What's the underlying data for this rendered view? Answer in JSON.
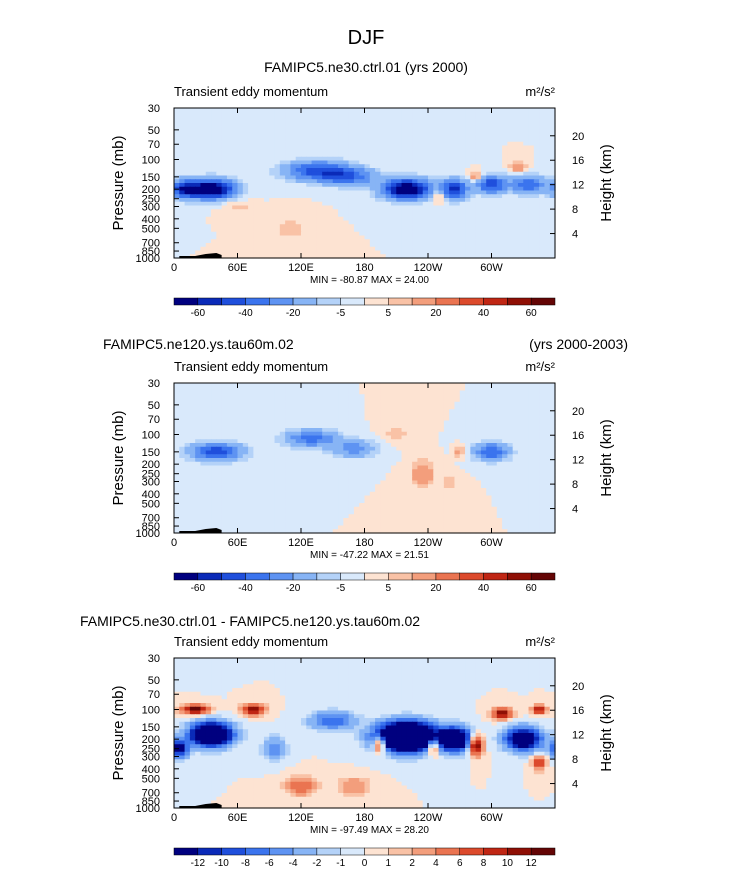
{
  "page_title": "DJF",
  "colors": {
    "cb_main": [
      "#00007f",
      "#0a2ab8",
      "#1f4fdc",
      "#3b74ee",
      "#5e93f2",
      "#87b4f5",
      "#b4d2f8",
      "#d9e9fb",
      "#fde3d2",
      "#f9c2a6",
      "#f39e7c",
      "#ea7451",
      "#dc4a2c",
      "#c02614",
      "#8f0f05",
      "#640505"
    ],
    "background": "#fde3d2",
    "topography": "#000000"
  },
  "chart_data": [
    {
      "type": "heatmap",
      "title": "FAMIPC5.ne30.ctrl.01 (yrs 2000)",
      "title_right": "",
      "subtitle_left": "Transient eddy momentum",
      "units": "m²/s²",
      "ylabel": "Pressure (mb)",
      "ylabel_right": "Height (km)",
      "x_ticks": [
        "0",
        "60E",
        "120E",
        "180",
        "120W",
        "60W"
      ],
      "y_ticks": [
        "30",
        "50",
        "70",
        "100",
        "150",
        "200",
        "250",
        "300",
        "400",
        "500",
        "700",
        "850",
        "1000"
      ],
      "y_ticks_right": [
        "20",
        "16",
        "12",
        "8",
        "4"
      ],
      "stats": "MIN = -80.87   MAX =  24.00",
      "min": -80.87,
      "max": 24.0,
      "colorbar": {
        "labels": [
          "-60",
          "-40",
          "-20",
          "-5",
          "5",
          "20",
          "40",
          "60"
        ],
        "levels": [
          -70,
          -60,
          -50,
          -40,
          -30,
          -20,
          -10,
          -5,
          0,
          5,
          10,
          20,
          30,
          40,
          50,
          60,
          70
        ]
      },
      "features": [
        {
          "lon": 35,
          "p": 200,
          "value": -80,
          "lon_width": 22,
          "log_width": 0.22
        },
        {
          "lon": 10,
          "p": 200,
          "value": -45,
          "lon_width": 12,
          "log_width": 0.2
        },
        {
          "lon": 135,
          "p": 130,
          "value": -45,
          "lon_width": 30,
          "log_width": 0.22
        },
        {
          "lon": 165,
          "p": 150,
          "value": -35,
          "lon_width": 25,
          "log_width": 0.2
        },
        {
          "lon": 220,
          "p": 200,
          "value": -80,
          "lon_width": 22,
          "log_width": 0.23
        },
        {
          "lon": 265,
          "p": 200,
          "value": -55,
          "lon_width": 12,
          "log_width": 0.22
        },
        {
          "lon": 300,
          "p": 180,
          "value": -50,
          "lon_width": 14,
          "log_width": 0.2
        },
        {
          "lon": 335,
          "p": 180,
          "value": -40,
          "lon_width": 16,
          "log_width": 0.2
        },
        {
          "lon": 250,
          "p": 230,
          "value": 20,
          "lon_width": 6,
          "log_width": 0.15
        },
        {
          "lon": 285,
          "p": 150,
          "value": 20,
          "lon_width": 6,
          "log_width": 0.12
        },
        {
          "lon": 325,
          "p": 120,
          "value": 20,
          "lon_width": 7,
          "log_width": 0.12
        },
        {
          "lon": 110,
          "p": 500,
          "value": 8,
          "lon_width": 14,
          "log_width": 0.3
        },
        {
          "lon": 60,
          "p": 300,
          "value": 8,
          "lon_width": 14,
          "log_width": 0.15
        }
      ]
    },
    {
      "type": "heatmap",
      "title": "FAMIPC5.ne120.ys.tau60m.02",
      "title_right": "(yrs 2000-2003)",
      "subtitle_left": "Transient eddy momentum",
      "units": "m²/s²",
      "ylabel": "Pressure (mb)",
      "ylabel_right": "Height (km)",
      "x_ticks": [
        "0",
        "60E",
        "120E",
        "180",
        "120W",
        "60W"
      ],
      "y_ticks": [
        "30",
        "50",
        "70",
        "100",
        "150",
        "200",
        "250",
        "300",
        "400",
        "500",
        "700",
        "850",
        "1000"
      ],
      "y_ticks_right": [
        "20",
        "16",
        "12",
        "8",
        "4"
      ],
      "stats": "MIN = -47.22   MAX =  21.51",
      "min": -47.22,
      "max": 21.51,
      "colorbar": {
        "labels": [
          "-60",
          "-40",
          "-20",
          "-5",
          "5",
          "20",
          "40",
          "60"
        ],
        "levels": [
          -70,
          -60,
          -50,
          -40,
          -30,
          -20,
          -10,
          -5,
          0,
          5,
          10,
          20,
          30,
          40,
          50,
          60,
          70
        ]
      },
      "features": [
        {
          "lon": 40,
          "p": 150,
          "value": -47,
          "lon_width": 24,
          "log_width": 0.2
        },
        {
          "lon": 130,
          "p": 110,
          "value": -35,
          "lon_width": 24,
          "log_width": 0.2
        },
        {
          "lon": 170,
          "p": 140,
          "value": -25,
          "lon_width": 20,
          "log_width": 0.2
        },
        {
          "lon": 300,
          "p": 150,
          "value": -40,
          "lon_width": 16,
          "log_width": 0.2
        },
        {
          "lon": 235,
          "p": 250,
          "value": 21,
          "lon_width": 10,
          "log_width": 0.28
        },
        {
          "lon": 210,
          "p": 100,
          "value": 8,
          "lon_width": 12,
          "log_width": 0.2
        },
        {
          "lon": 270,
          "p": 150,
          "value": 15,
          "lon_width": 5,
          "log_width": 0.12
        },
        {
          "lon": 260,
          "p": 300,
          "value": 10,
          "lon_width": 8,
          "log_width": 0.18
        }
      ]
    },
    {
      "type": "heatmap",
      "title": "FAMIPC5.ne30.ctrl.01 - FAMIPC5.ne120.ys.tau60m.02",
      "title_right": "",
      "subtitle_left": "Transient eddy momentum",
      "units": "m²/s²",
      "ylabel": "Pressure (mb)",
      "ylabel_right": "Height (km)",
      "x_ticks": [
        "0",
        "60E",
        "120E",
        "180",
        "120W",
        "60W"
      ],
      "y_ticks": [
        "30",
        "50",
        "70",
        "100",
        "150",
        "200",
        "250",
        "300",
        "400",
        "500",
        "700",
        "850",
        "1000"
      ],
      "y_ticks_right": [
        "20",
        "16",
        "12",
        "8",
        "4"
      ],
      "stats": "MIN = -97.49   MAX =  28.20",
      "min": -97.49,
      "max": 28.2,
      "colorbar": {
        "labels": [
          "-12",
          "-10",
          "-8",
          "-6",
          "-4",
          "-2",
          "-1",
          "0",
          "1",
          "2",
          "4",
          "6",
          "8",
          "10",
          "12"
        ],
        "levels": [
          -14,
          -12,
          -10,
          -8,
          -6,
          -4,
          -2,
          -1,
          0,
          1,
          2,
          4,
          6,
          8,
          10,
          12,
          14
        ]
      },
      "features": [
        {
          "lon": 35,
          "p": 180,
          "value": -30,
          "lon_width": 18,
          "log_width": 0.25
        },
        {
          "lon": 220,
          "p": 190,
          "value": -40,
          "lon_width": 25,
          "log_width": 0.3
        },
        {
          "lon": 265,
          "p": 200,
          "value": -25,
          "lon_width": 14,
          "log_width": 0.25
        },
        {
          "lon": 330,
          "p": 200,
          "value": -20,
          "lon_width": 16,
          "log_width": 0.25
        },
        {
          "lon": 5,
          "p": 250,
          "value": -14,
          "lon_width": 8,
          "log_width": 0.2
        },
        {
          "lon": 150,
          "p": 130,
          "value": -8,
          "lon_width": 20,
          "log_width": 0.2
        },
        {
          "lon": 20,
          "p": 100,
          "value": 14,
          "lon_width": 12,
          "log_width": 0.1
        },
        {
          "lon": 75,
          "p": 100,
          "value": 12,
          "lon_width": 10,
          "log_width": 0.12
        },
        {
          "lon": 195,
          "p": 220,
          "value": 14,
          "lon_width": 6,
          "log_width": 0.2
        },
        {
          "lon": 245,
          "p": 230,
          "value": 12,
          "lon_width": 6,
          "log_width": 0.2
        },
        {
          "lon": 285,
          "p": 230,
          "value": 14,
          "lon_width": 6,
          "log_width": 0.22
        },
        {
          "lon": 310,
          "p": 110,
          "value": 12,
          "lon_width": 9,
          "log_width": 0.12
        },
        {
          "lon": 345,
          "p": 100,
          "value": 12,
          "lon_width": 6,
          "log_width": 0.1
        },
        {
          "lon": 345,
          "p": 350,
          "value": 10,
          "lon_width": 6,
          "log_width": 0.15
        },
        {
          "lon": 120,
          "p": 600,
          "value": 6,
          "lon_width": 14,
          "log_width": 0.2
        },
        {
          "lon": 170,
          "p": 600,
          "value": 4,
          "lon_width": 14,
          "log_width": 0.2
        },
        {
          "lon": 95,
          "p": 250,
          "value": -6,
          "lon_width": 10,
          "log_width": 0.25
        }
      ]
    }
  ]
}
